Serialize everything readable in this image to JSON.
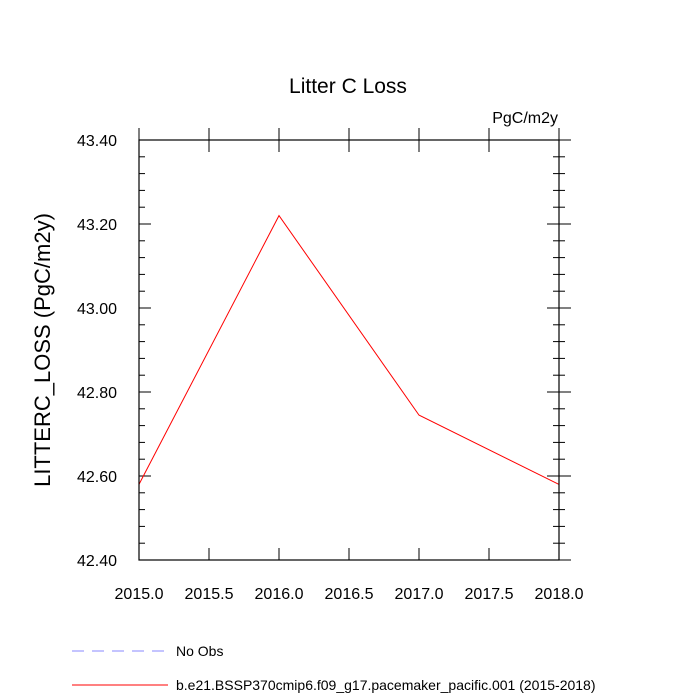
{
  "chart_data": {
    "type": "line",
    "title": "Litter C Loss",
    "units": "PgC/m2y",
    "ylabel": "LITTERC_LOSS  (PgC/m2y)",
    "xlabel": "",
    "xlim": [
      2015.0,
      2018.0
    ],
    "ylim": [
      42.4,
      43.4
    ],
    "x_ticks": [
      "2015.0",
      "2015.5",
      "2016.0",
      "2016.5",
      "2017.0",
      "2017.5",
      "2018.0"
    ],
    "y_ticks": [
      "42.40",
      "42.60",
      "42.80",
      "43.00",
      "43.20",
      "43.40"
    ],
    "x": [
      2015.0,
      2016.0,
      2017.0,
      2018.0
    ],
    "series": [
      {
        "name": "b.e21.BSSP370cmip6.f09_g17.pacemaker_pacific.001 (2015-2018)",
        "color": "#ff0000",
        "style": "solid",
        "values": [
          42.58,
          43.22,
          42.745,
          42.58
        ]
      }
    ],
    "legend": [
      {
        "label": "No Obs",
        "color": "#8888ff",
        "style": "dashed"
      },
      {
        "label": "b.e21.BSSP370cmip6.f09_g17.pacemaker_pacific.001 (2015-2018)",
        "color": "#ff0000",
        "style": "solid"
      }
    ],
    "legend_position": "bottom-left",
    "grid": false
  }
}
